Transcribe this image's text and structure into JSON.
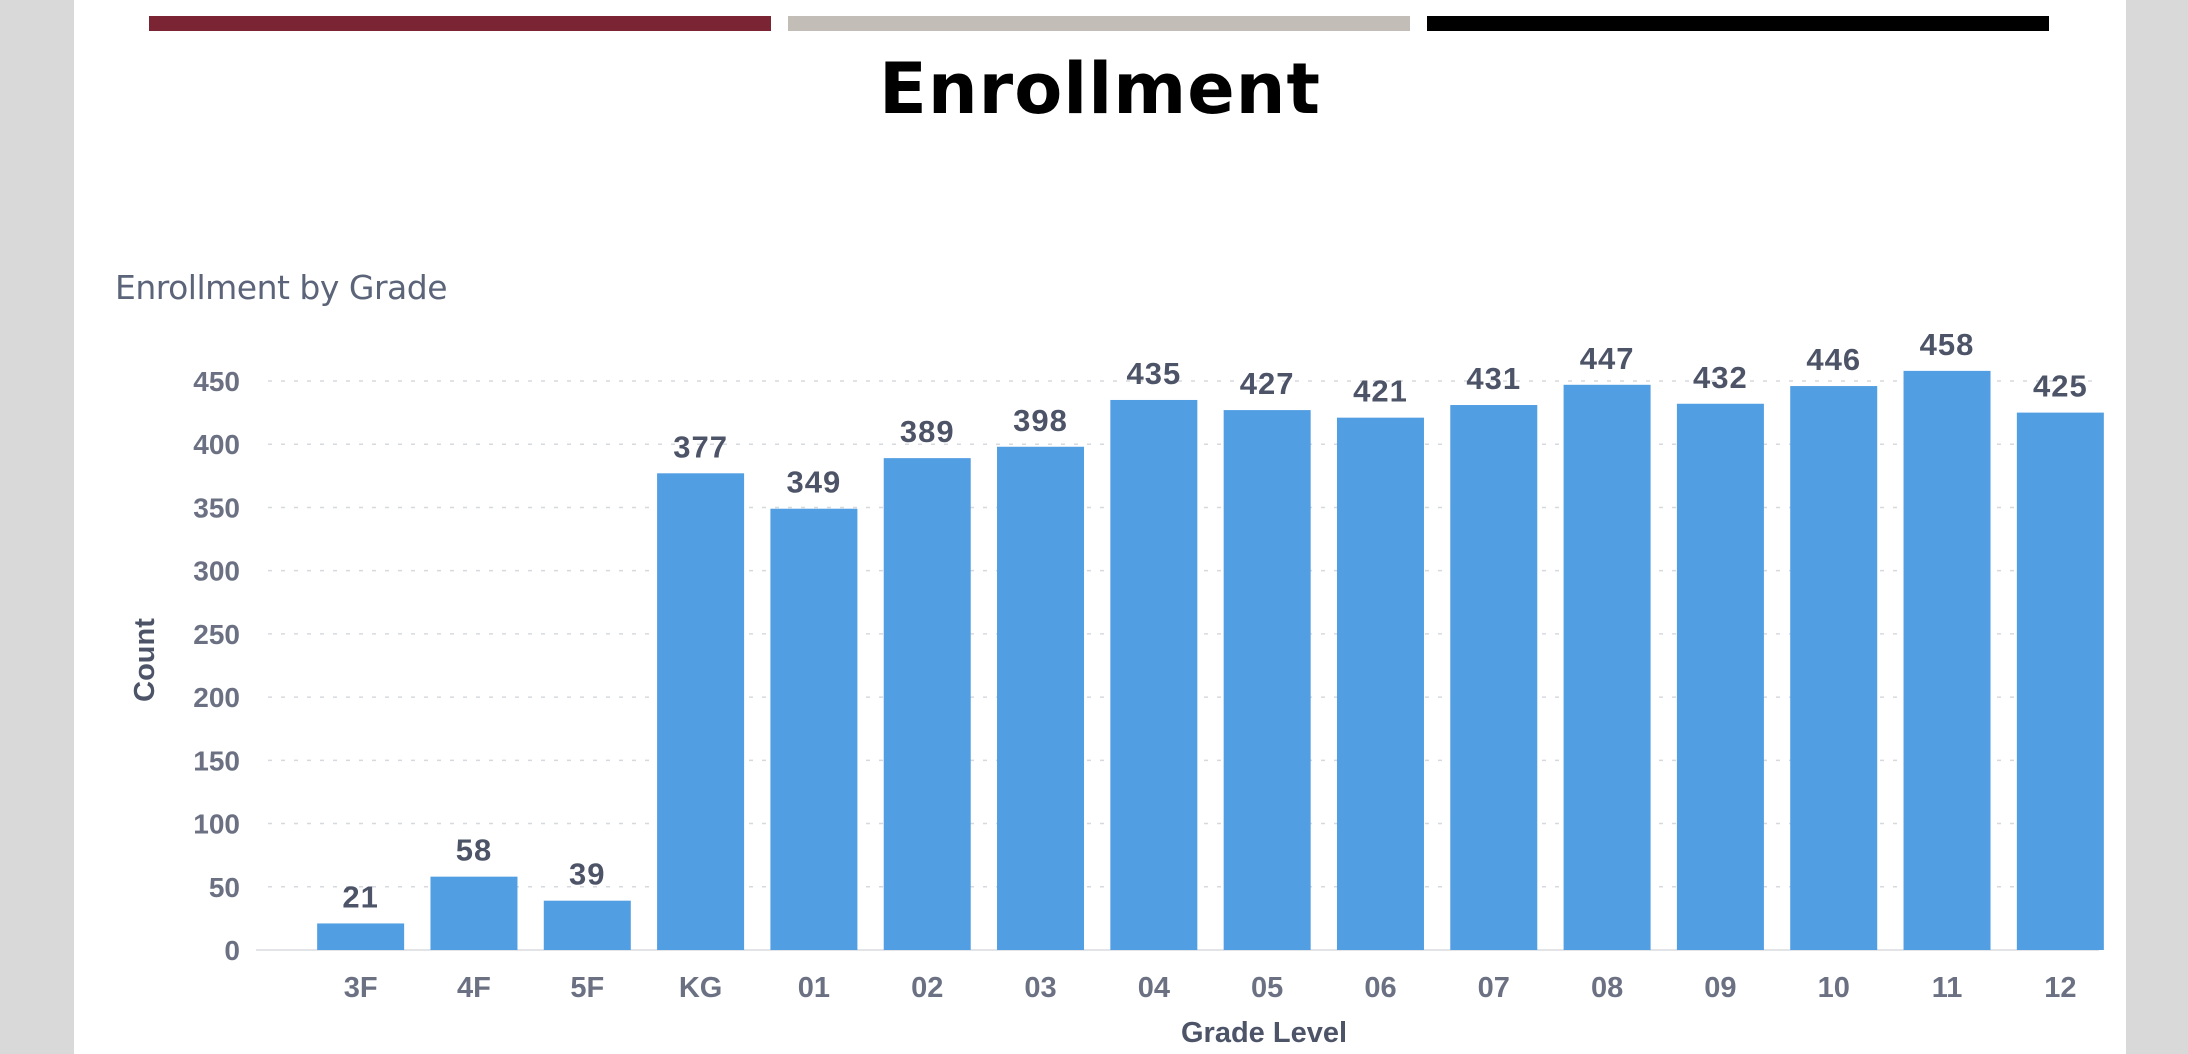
{
  "slide": {
    "title": "Enrollment",
    "band_colors": [
      "#7a2434",
      "#c3bdb8",
      "#000000"
    ],
    "background": "#ffffff",
    "frame": "#d9d9d9"
  },
  "chart_data": {
    "type": "bar",
    "title": "Enrollment by Grade",
    "xlabel": "Grade Level",
    "ylabel": "Count",
    "categories": [
      "3F",
      "4F",
      "5F",
      "KG",
      "01",
      "02",
      "03",
      "04",
      "05",
      "06",
      "07",
      "08",
      "09",
      "10",
      "11",
      "12"
    ],
    "values": [
      21,
      58,
      39,
      377,
      349,
      389,
      398,
      435,
      427,
      421,
      431,
      447,
      432,
      446,
      458,
      425
    ],
    "ylim": [
      0,
      450
    ],
    "yticks": [
      0,
      50,
      100,
      150,
      200,
      250,
      300,
      350,
      400,
      450
    ],
    "bar_color": "#519ee2",
    "label_color": "#4d5468",
    "grid": "dashed horizontal",
    "legend": "none"
  }
}
